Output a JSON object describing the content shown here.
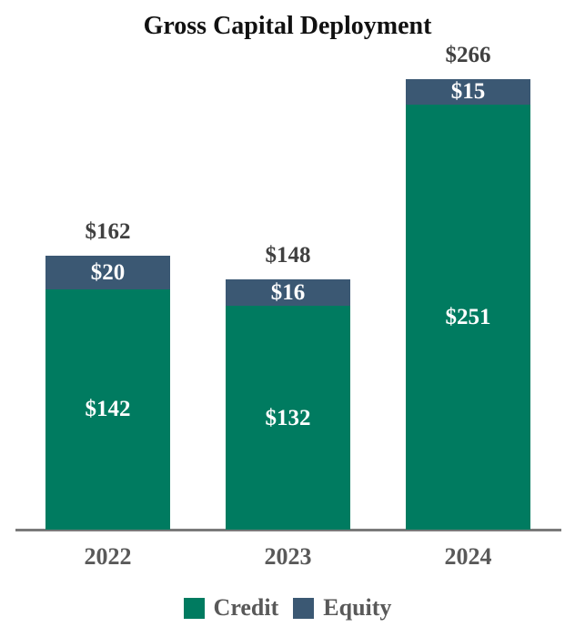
{
  "chart_data": {
    "type": "bar",
    "stacked": true,
    "title": "Gross Capital Deployment",
    "categories": [
      "2022",
      "2023",
      "2024"
    ],
    "series": [
      {
        "name": "Credit",
        "color": "#007B60",
        "values": [
          142,
          132,
          251
        ]
      },
      {
        "name": "Equity",
        "color": "#3B5873",
        "values": [
          20,
          16,
          15
        ]
      }
    ],
    "totals": [
      162,
      148,
      266
    ],
    "value_prefix": "$",
    "legend_position": "bottom",
    "ylim": [
      0,
      280
    ],
    "grid": false,
    "colors": {
      "credit": "#007B60",
      "equity": "#3B5873",
      "total_label": "#404040",
      "segment_label": "#FFFFFF",
      "category_label": "#595959",
      "axis_line": "#7A7A7A",
      "title": "#111111",
      "background": "#FFFFFF"
    }
  }
}
